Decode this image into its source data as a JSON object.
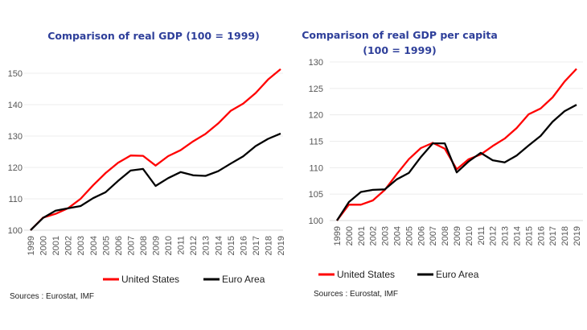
{
  "chart_data": [
    {
      "type": "line",
      "title": "Comparison of real GDP (100 = 1999)",
      "x": [
        "1999",
        "2000",
        "2001",
        "2002",
        "2003",
        "2004",
        "2005",
        "2006",
        "2007",
        "2008",
        "2009",
        "2010",
        "2011",
        "2012",
        "2013",
        "2014",
        "2015",
        "2016",
        "2017",
        "2018",
        "2019"
      ],
      "ylim": [
        100,
        150
      ],
      "yticks": [
        100,
        110,
        120,
        130,
        140,
        150
      ],
      "grid": true,
      "legend_position": "bottom",
      "series": [
        {
          "name": "United States",
          "color": "#ff0000",
          "values": [
            100,
            104,
            105.2,
            107,
            110,
            114.3,
            118.2,
            121.5,
            123.8,
            123.7,
            120.6,
            123.6,
            125.5,
            128.3,
            130.7,
            134,
            138,
            140.3,
            143.7,
            148,
            151.3
          ]
        },
        {
          "name": "Euro Area",
          "color": "#000000",
          "values": [
            100,
            103.9,
            106.2,
            107,
            107.7,
            110.2,
            112.1,
            115.7,
            119,
            119.5,
            114.1,
            116.6,
            118.5,
            117.5,
            117.3,
            118.8,
            121.2,
            123.5,
            126.8,
            129.1,
            130.8
          ]
        }
      ],
      "source": "Sources : Eurostat, IMF"
    },
    {
      "type": "line",
      "title": "Comparison of real GDP per capita",
      "title_line2": "(100 = 1999)",
      "x": [
        "1999",
        "2000",
        "2001",
        "2002",
        "2003",
        "2004",
        "2005",
        "2006",
        "2007",
        "2008",
        "2009",
        "2010",
        "2011",
        "2012",
        "2013",
        "2014",
        "2015",
        "2016",
        "2017",
        "2018",
        "2019"
      ],
      "ylim": [
        100,
        130
      ],
      "yticks": [
        100,
        105,
        110,
        115,
        120,
        125,
        130
      ],
      "grid": true,
      "legend_position": "bottom",
      "series": [
        {
          "name": "United States",
          "color": "#ff0000",
          "values": [
            100,
            103,
            103,
            103.8,
            105.8,
            108.8,
            111.6,
            113.7,
            114.7,
            113.6,
            109.7,
            111.6,
            112.5,
            114.1,
            115.5,
            117.5,
            120.1,
            121.2,
            123.3,
            126.3,
            128.7
          ]
        },
        {
          "name": "Euro Area",
          "color": "#000000",
          "values": [
            100,
            103.5,
            105.4,
            105.8,
            105.9,
            107.8,
            109,
            112,
            114.6,
            114.6,
            109.1,
            111.2,
            112.8,
            111.4,
            111,
            112.3,
            114.2,
            116,
            118.7,
            120.7,
            121.9
          ]
        }
      ],
      "source": "Sources : Eurostat, IMF"
    }
  ]
}
